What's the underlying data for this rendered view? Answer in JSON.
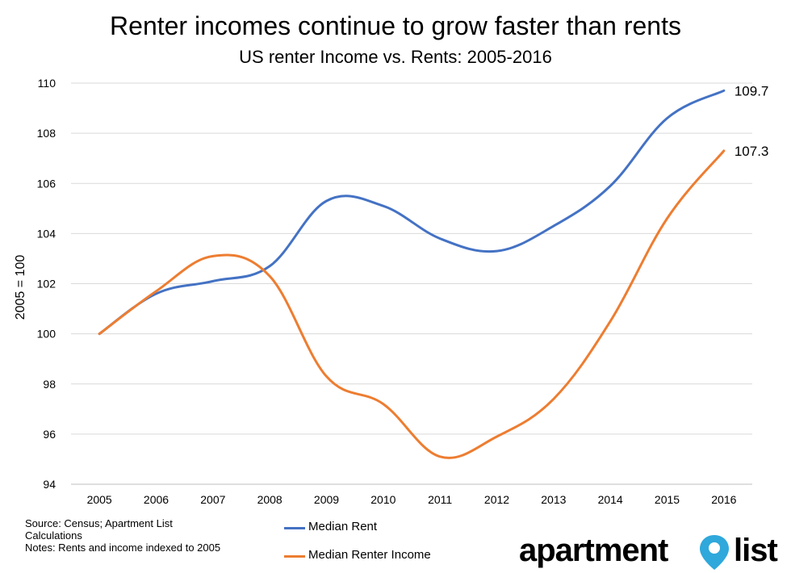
{
  "chart_data": {
    "type": "line",
    "title": "Renter incomes continue to grow faster than rents",
    "subtitle": "US renter Income vs. Rents: 2005-2016",
    "ylabel": "2005 = 100",
    "xlabel": "",
    "categories": [
      "2005",
      "2006",
      "2007",
      "2008",
      "2009",
      "2010",
      "2011",
      "2012",
      "2013",
      "2014",
      "2015",
      "2016"
    ],
    "ylim": [
      94,
      110
    ],
    "yticks": [
      94,
      96,
      98,
      100,
      102,
      104,
      106,
      108,
      110
    ],
    "grid": true,
    "legend_position": "bottom",
    "series": [
      {
        "name": "Median Rent",
        "color": "#4472C4",
        "values": [
          100,
          101.6,
          102.1,
          102.7,
          105.3,
          105.1,
          103.8,
          103.3,
          104.3,
          105.9,
          108.6,
          109.7
        ],
        "end_label": "109.7"
      },
      {
        "name": "Median Renter Income",
        "color": "#ED7D31",
        "values": [
          100,
          101.7,
          103.1,
          102.3,
          98.3,
          97.2,
          95.1,
          95.9,
          97.4,
          100.5,
          104.6,
          107.3
        ],
        "end_label": "107.3"
      }
    ]
  },
  "footnotes": {
    "source_line1": "Source: Census; Apartment List",
    "source_line2": "Calculations",
    "notes": "Notes: Rents and income indexed to 2005"
  },
  "logo": {
    "text_left": "apartment",
    "text_right": "list",
    "pin_color": "#2FA8DB",
    "pin_icon": "map-pin-icon"
  }
}
